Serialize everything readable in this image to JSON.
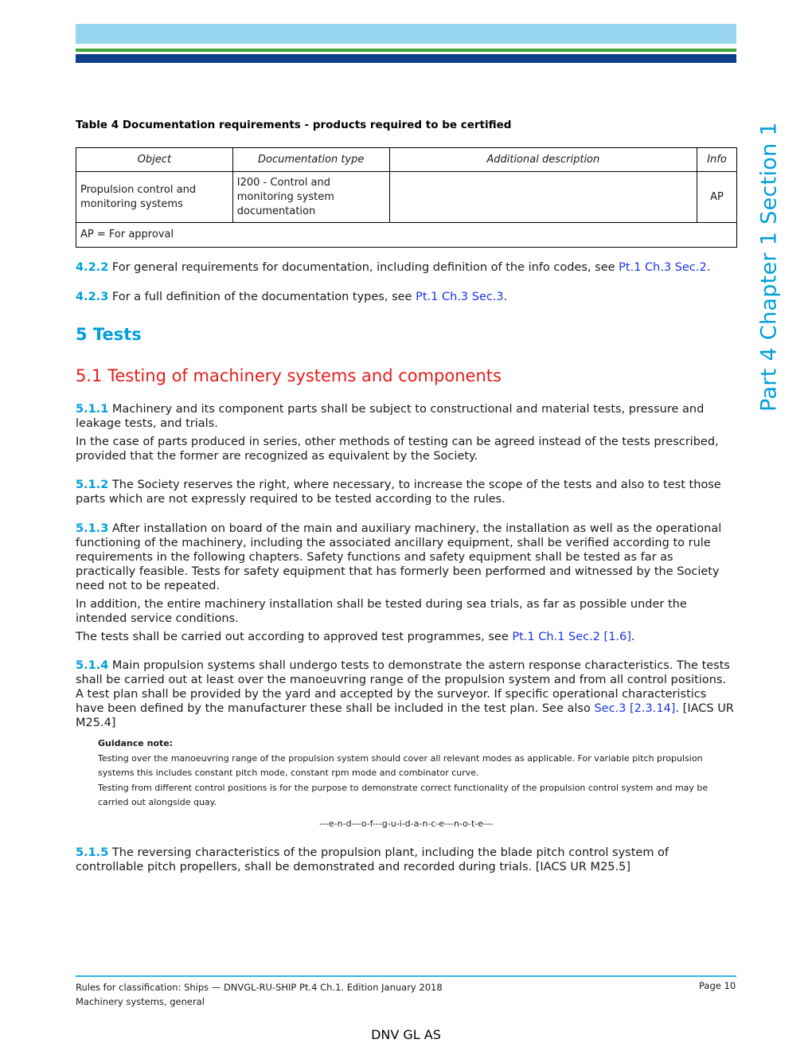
{
  "side_label": "Part 4 Chapter 1 Section 1",
  "table": {
    "caption": "Table 4 Documentation requirements - products required to be certified",
    "headers": [
      "Object",
      "Documentation type",
      "Additional description",
      "Info"
    ],
    "row": {
      "object": "Propulsion control and monitoring systems",
      "doc_type": "I200 - Control and monitoring system documentation",
      "description": "",
      "info": "AP"
    },
    "footnote": "AP = For approval"
  },
  "p422": {
    "num": "4.2.2",
    "text": " For general requirements for documentation, including definition of the info codes, see ",
    "link": "Pt.1 Ch.3 Sec.2",
    "end": "."
  },
  "p423": {
    "num": "4.2.3",
    "text": " For a full definition of the documentation types, see ",
    "link": "Pt.1 Ch.3 Sec.3",
    "end": "."
  },
  "heading1": "5 Tests",
  "heading2": "5.1 Testing of machinery systems and components",
  "p511": {
    "num": "5.1.1",
    "text": " Machinery and its component parts shall be subject to constructional and material tests, pressure and leakage tests, and trials.",
    "text2": "In the case of parts produced in series, other methods of testing can be agreed instead of the tests prescribed, provided that the former are recognized as equivalent by the Society."
  },
  "p512": {
    "num": "5.1.2",
    "text": " The Society reserves the right, where necessary, to increase the scope of the tests and also to test those parts which are not expressly required to be tested according to the rules."
  },
  "p513": {
    "num": "5.1.3",
    "text": " After installation on board of the main and auxiliary machinery, the installation as well as the operational functioning of the machinery, including the associated ancillary equipment, shall be verified according to rule requirements in the following chapters. Safety functions and safety equipment shall be tested as far as practically feasible. Tests for safety equipment that has formerly been performed and witnessed by the Society need not to be repeated.",
    "text2": "In addition, the entire machinery installation shall be tested during sea trials, as far as possible under the intended service conditions.",
    "text3": "The tests shall be carried out according to approved test programmes, see ",
    "link": "Pt.1 Ch.1 Sec.2 [1.6]",
    "end": "."
  },
  "p514": {
    "num": "5.1.4",
    "text": "  Main propulsion systems shall undergo tests to demonstrate the astern response characteristics. The tests shall be carried out at least over the manoeuvring range of the propulsion system and from all control positions. A test plan shall be provided by the yard and accepted by the surveyor. If specific operational characteristics have been defined by the manufacturer these shall be included in the test plan. See also ",
    "link": "Sec.3 [2.3.14]",
    "end": ". [IACS UR M25.4]"
  },
  "guidance": {
    "title": "Guidance note:",
    "line1": "Testing over the manoeuvring range of the propulsion system should cover all relevant modes as applicable. For variable pitch propulsion systems this includes constant pitch mode, constant rpm mode and combinator curve.",
    "line2": "Testing from different control positions is for the purpose to demonstrate correct functionality of the propulsion control system and may be carried out alongside quay.",
    "end": "---e-n-d---o-f---g-u-i-d-a-n-c-e---n-o-t-e---"
  },
  "p515": {
    "num": "5.1.5",
    "text": "  The reversing characteristics of the propulsion plant, including the blade pitch control system of controllable pitch propellers, shall be demonstrated and recorded during trials. [IACS UR M25.5]"
  },
  "footer": {
    "line1": "Rules for classification: Ships — DNVGL-RU-SHIP Pt.4 Ch.1. Edition January 2018",
    "line2": "Machinery systems, general",
    "page": "Page 10",
    "company": "DNV GL AS"
  },
  "colors": {
    "accent": "#009fda",
    "heading2": "#e31d1a",
    "link": "#1a35e8",
    "band_light": "#99d6f0",
    "band_green": "#3fa535",
    "band_blue": "#0f3e8c"
  }
}
